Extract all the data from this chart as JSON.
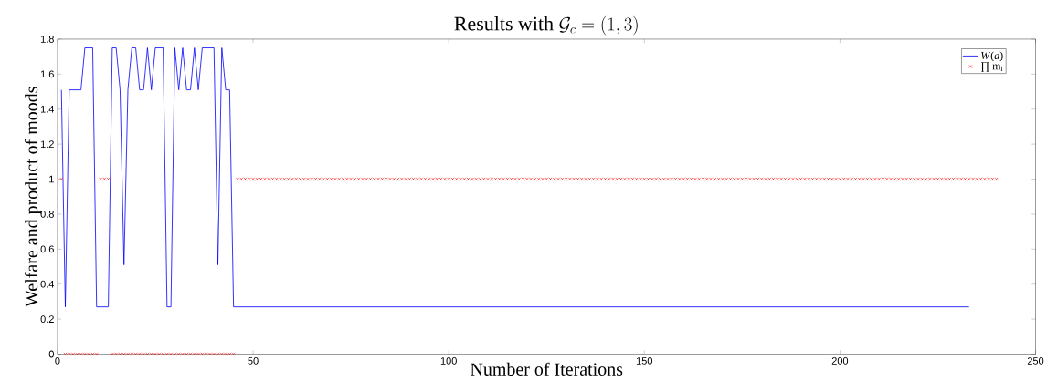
{
  "chart_data": {
    "type": "line",
    "title": "\\mathrm{Results\\ with\\ }\\mathcal{G}_c = (1,3)",
    "xlabel": "Number of Iterations",
    "ylabel": "Welfare and product of moods",
    "xlim": [
      0,
      250
    ],
    "xticks": [
      0,
      50,
      100,
      150,
      200,
      250
    ],
    "ylim": [
      0,
      1.8
    ],
    "yticks": [
      0,
      0.2,
      0.4,
      0.6,
      0.8,
      1,
      1.2,
      1.4,
      1.6,
      1.8
    ],
    "legend": "top right",
    "series": [
      {
        "name": "*W*(*a*)",
        "type": "line",
        "color": "#0000ff",
        "marker": "none",
        "line_style": "solid",
        "x": [
          1,
          2,
          3,
          4,
          5,
          6,
          7,
          8,
          9,
          10,
          11,
          12,
          13,
          14,
          15,
          16,
          17,
          18,
          19,
          20,
          21,
          22,
          23,
          24,
          25,
          26,
          27,
          28,
          29,
          30,
          31,
          32,
          33,
          34,
          35,
          36,
          37,
          38,
          39,
          40,
          41,
          42,
          43,
          44,
          45,
          233
        ],
        "values": [
          1.51,
          0.27,
          1.51,
          1.51,
          1.51,
          1.51,
          1.75,
          1.75,
          1.75,
          0.27,
          0.27,
          0.27,
          0.27,
          1.75,
          1.75,
          1.51,
          0.51,
          1.51,
          1.75,
          1.75,
          1.51,
          1.51,
          1.75,
          1.51,
          1.75,
          1.75,
          1.75,
          0.27,
          0.27,
          1.75,
          1.51,
          1.75,
          1.51,
          1.51,
          1.75,
          1.51,
          1.75,
          1.75,
          1.75,
          1.75,
          0.51,
          1.75,
          1.51,
          1.51,
          0.27,
          0.27
        ]
      },
      {
        "name": "∏ m$_{i}$",
        "type": "scatter",
        "color": "#ff0000",
        "marker": "cross",
        "x": [
          1,
          2,
          3,
          4,
          5,
          6,
          7,
          8,
          9,
          10,
          11,
          12,
          13,
          14,
          15,
          16,
          17,
          18,
          19,
          20,
          21,
          22,
          23,
          24,
          25,
          26,
          27,
          28,
          29,
          30,
          31,
          32,
          33,
          34,
          35,
          36,
          37,
          38,
          39,
          40,
          41,
          42,
          43,
          44,
          45,
          46,
          47,
          48,
          49,
          50,
          51,
          52,
          53,
          54,
          55,
          56,
          57,
          58,
          59,
          60,
          61,
          62,
          63,
          64,
          65,
          66,
          67,
          68,
          69,
          70,
          71,
          72,
          73,
          74,
          75,
          76,
          77,
          78,
          79,
          80,
          81,
          82,
          83,
          84,
          85,
          86,
          87,
          88,
          89,
          90,
          91,
          92,
          93,
          94,
          95,
          96,
          97,
          98,
          99,
          100,
          101,
          102,
          103,
          104,
          105,
          106,
          107,
          108,
          109,
          110,
          111,
          112,
          113,
          114,
          115,
          116,
          117,
          118,
          119,
          120,
          121,
          122,
          123,
          124,
          125,
          126,
          127,
          128,
          129,
          130,
          131,
          132,
          133,
          134,
          135,
          136,
          137,
          138,
          139,
          140,
          141,
          142,
          143,
          144,
          145,
          146,
          147,
          148,
          149,
          150,
          151,
          152,
          153,
          154,
          155,
          156,
          157,
          158,
          159,
          160,
          161,
          162,
          163,
          164,
          165,
          166,
          167,
          168,
          169,
          170,
          171,
          172,
          173,
          174,
          175,
          176,
          177,
          178,
          179,
          180,
          181,
          182,
          183,
          184,
          185,
          186,
          187,
          188,
          189,
          190,
          191,
          192,
          193,
          194,
          195,
          196,
          197,
          198,
          199,
          200,
          201,
          202,
          203,
          204,
          205,
          206,
          207,
          208,
          209,
          210,
          211,
          212,
          213,
          214,
          215,
          216,
          217,
          218,
          219,
          220,
          221,
          222,
          223,
          224,
          225,
          226,
          227,
          228,
          229,
          230,
          231,
          232,
          233,
          234,
          235,
          236,
          237,
          238,
          239,
          240
        ],
        "values": [
          1,
          0,
          0,
          0,
          0,
          0,
          0,
          0,
          0,
          0,
          1,
          1,
          1,
          0,
          0,
          0,
          0,
          0,
          0,
          0,
          0,
          0,
          0,
          0,
          0,
          0,
          0,
          0,
          0,
          0,
          0,
          0,
          0,
          0,
          0,
          0,
          0,
          0,
          0,
          0,
          0,
          0,
          0,
          0,
          0,
          1,
          1,
          1,
          1,
          1,
          1,
          1,
          1,
          1,
          1,
          1,
          1,
          1,
          1,
          1,
          1,
          1,
          1,
          1,
          1,
          1,
          1,
          1,
          1,
          1,
          1,
          1,
          1,
          1,
          1,
          1,
          1,
          1,
          1,
          1,
          1,
          1,
          1,
          1,
          1,
          1,
          1,
          1,
          1,
          1,
          1,
          1,
          1,
          1,
          1,
          1,
          1,
          1,
          1,
          1,
          1,
          1,
          1,
          1,
          1,
          1,
          1,
          1,
          1,
          1,
          1,
          1,
          1,
          1,
          1,
          1,
          1,
          1,
          1,
          1,
          1,
          1,
          1,
          1,
          1,
          1,
          1,
          1,
          1,
          1,
          1,
          1,
          1,
          1,
          1,
          1,
          1,
          1,
          1,
          1,
          1,
          1,
          1,
          1,
          1,
          1,
          1,
          1,
          1,
          1,
          1,
          1,
          1,
          1,
          1,
          1,
          1,
          1,
          1,
          1,
          1,
          1,
          1,
          1,
          1,
          1,
          1,
          1,
          1,
          1,
          1,
          1,
          1,
          1,
          1,
          1,
          1,
          1,
          1,
          1,
          1,
          1,
          1,
          1,
          1,
          1,
          1,
          1,
          1,
          1,
          1,
          1,
          1,
          1,
          1,
          1,
          1,
          1,
          1,
          1,
          1,
          1,
          1,
          1,
          1,
          1,
          1,
          1,
          1,
          1,
          1,
          1,
          1,
          1,
          1,
          1,
          1,
          1,
          1,
          1,
          1,
          1,
          1,
          1,
          1,
          1,
          1,
          1,
          1,
          1,
          1,
          1,
          1,
          1,
          1,
          1,
          1,
          1,
          1,
          1
        ]
      }
    ]
  }
}
